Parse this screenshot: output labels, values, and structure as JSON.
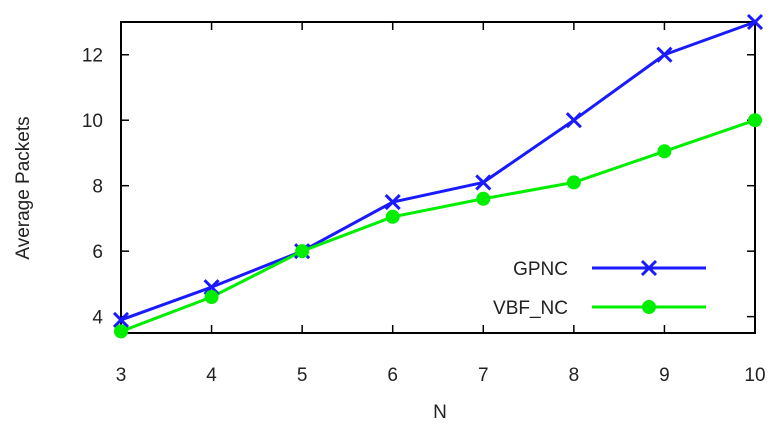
{
  "chart_data": {
    "type": "line",
    "title": "",
    "xlabel": "N",
    "ylabel": "Average Packets",
    "x": [
      3,
      4,
      5,
      6,
      7,
      8,
      9,
      10
    ],
    "xlim": [
      3,
      10
    ],
    "ylim": [
      3.5,
      13
    ],
    "xticks": [
      "3",
      "4",
      "5",
      "6",
      "7",
      "8",
      "9",
      "10"
    ],
    "yticks": [
      "4",
      "6",
      "8",
      "10",
      "12"
    ],
    "grid": false,
    "legend_position": "bottom-right",
    "series": [
      {
        "name": "GPNC",
        "color": "#1a1aff",
        "marker": "x",
        "values": [
          3.9,
          4.9,
          6.0,
          7.5,
          8.1,
          10.0,
          12.0,
          13.0
        ]
      },
      {
        "name": "VBF_NC",
        "color": "#00ee00",
        "marker": "circle",
        "values": [
          3.55,
          4.6,
          6.0,
          7.05,
          7.6,
          8.1,
          9.05,
          10.0
        ]
      }
    ]
  }
}
